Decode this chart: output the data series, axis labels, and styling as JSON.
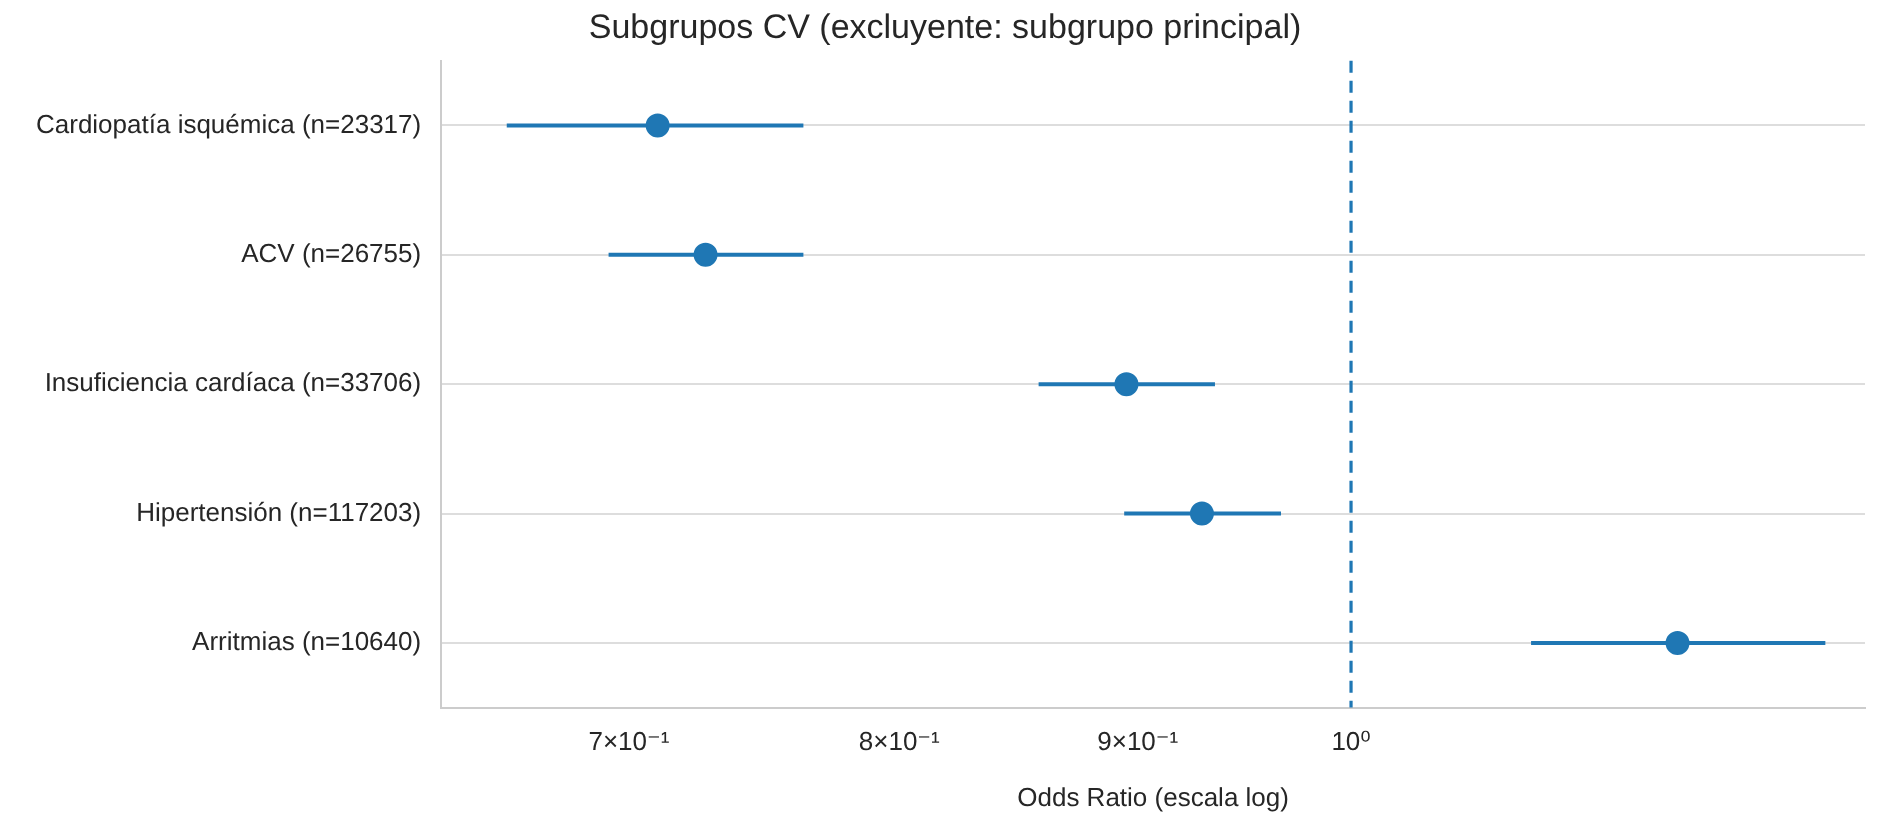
{
  "chart_data": {
    "type": "scatter",
    "title": "Subgrupos CV (excluyente: subgrupo principal)",
    "xlabel": "Odds Ratio (escala log)",
    "categories": [
      "Cardiopatía isquémica (n=23317)",
      "ACV (n=26755)",
      "Insuficiencia cardíaca (n=33706)",
      "Hipertensión (n=117203)",
      "Arritmias (n=10640)"
    ],
    "color": "#1f77b4",
    "values": [
      0.71,
      0.727,
      0.895,
      0.929,
      1.175
    ],
    "errors": [
      [
        0.659,
        0.763
      ],
      [
        0.693,
        0.763
      ],
      [
        0.857,
        0.935
      ],
      [
        0.894,
        0.966
      ],
      [
        1.093,
        1.264
      ]
    ],
    "orientation": "horizontal",
    "log": "x",
    "xlim": [
      0.638,
      1.289
    ],
    "xticks": [
      {
        "value": 0.7,
        "label": "7×10⁻¹"
      },
      {
        "value": 0.8,
        "label": "8×10⁻¹"
      },
      {
        "value": 0.9,
        "label": "9×10⁻¹"
      },
      {
        "value": 1,
        "label": "10⁰"
      }
    ],
    "ref_lines": [
      {
        "axis": "x",
        "value": 1,
        "color": "#1f77b4",
        "line_style": "dashed"
      }
    ],
    "grid": "y",
    "marker": "circle",
    "legend": false
  }
}
